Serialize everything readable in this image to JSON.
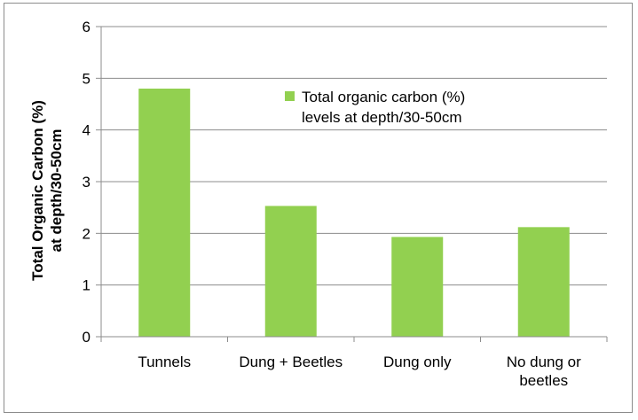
{
  "chart_data": {
    "type": "bar",
    "categories": [
      [
        "Tunnels"
      ],
      [
        "Dung + Beetles"
      ],
      [
        "Dung only"
      ],
      [
        "No dung or",
        "beetles"
      ]
    ],
    "series": [
      {
        "name": [
          "Total organic carbon (%)",
          "levels at depth/30-50cm"
        ],
        "values": [
          4.8,
          2.53,
          1.93,
          2.12
        ],
        "color": "#92d050"
      }
    ],
    "ylabel": [
      "Total Organic Carbon (%)",
      "at depth/30-50cm"
    ],
    "ylim": [
      0,
      6
    ],
    "yticks": [
      "0",
      "1",
      "2",
      "3",
      "4",
      "5",
      "6"
    ],
    "grid": true,
    "gridColor": "#8c8c8c",
    "legend": "top-center"
  }
}
